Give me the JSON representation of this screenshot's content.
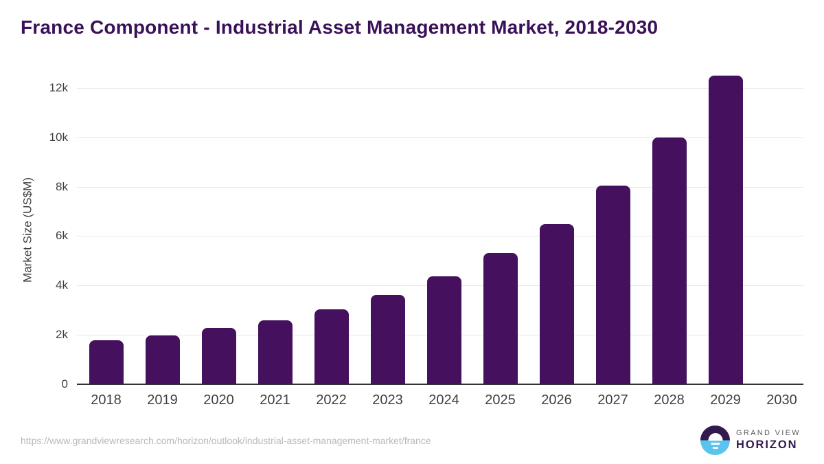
{
  "chart_data": {
    "type": "bar",
    "title": "France Component - Industrial Asset Management Market, 2018-2030",
    "xlabel": "",
    "ylabel": "Market Size (US$M)",
    "categories": [
      "2018",
      "2019",
      "2020",
      "2021",
      "2022",
      "2023",
      "2024",
      "2025",
      "2026",
      "2027",
      "2028",
      "2029",
      "2030"
    ],
    "values": [
      1780,
      1970,
      2280,
      2600,
      3040,
      3620,
      4370,
      5310,
      6500,
      8050,
      10000,
      12490,
      null
    ],
    "ylim": [
      0,
      12500
    ],
    "yticks": [
      {
        "value": 0,
        "label": "0"
      },
      {
        "value": 2000,
        "label": "2k"
      },
      {
        "value": 4000,
        "label": "4k"
      },
      {
        "value": 6000,
        "label": "6k"
      },
      {
        "value": 8000,
        "label": "8k"
      },
      {
        "value": 10000,
        "label": "10k"
      },
      {
        "value": 12000,
        "label": "12k"
      }
    ],
    "grid": "horizontal",
    "legend": "none",
    "bar_color": "#45105e"
  },
  "footer": {
    "url": "https://www.grandviewresearch.com/horizon/outlook/industrial-asset-management-market/france",
    "logo": {
      "top": "GRAND VIEW",
      "bottom": "HORIZON",
      "purple": "#32194e",
      "blue": "#5ac3ee"
    }
  }
}
